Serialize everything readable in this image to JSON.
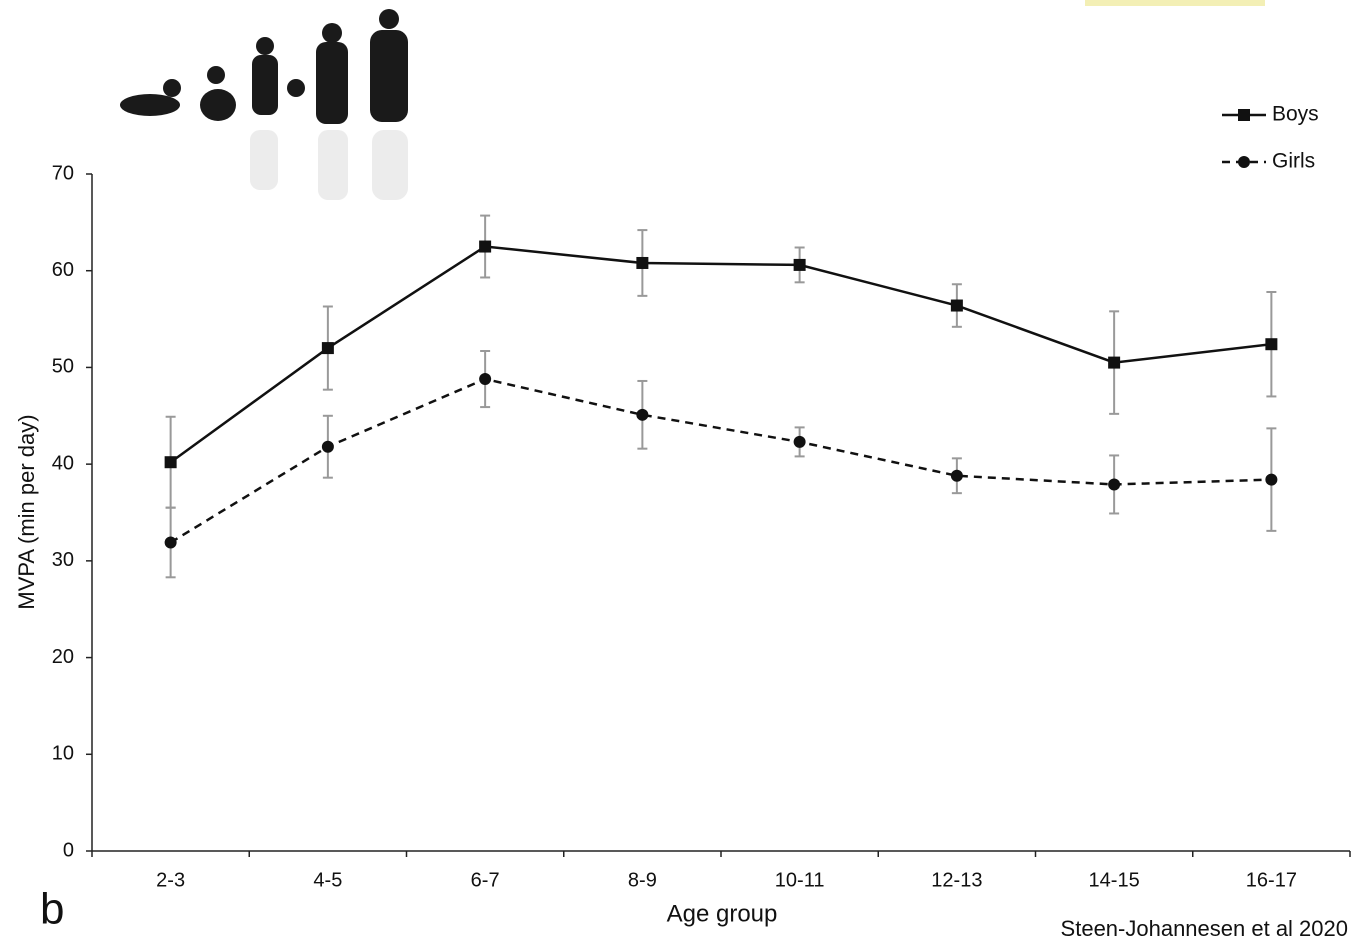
{
  "chart_data": {
    "type": "line",
    "x_label": "Age group",
    "y_label": "MVPA (min per day)",
    "source": "Steen-Johannesen et al 2020",
    "panel_label": "b",
    "categories": [
      "2-3",
      "4-5",
      "6-7",
      "8-9",
      "10-11",
      "12-13",
      "14-15",
      "16-17"
    ],
    "series": [
      {
        "name": "Boys",
        "color": "#111111",
        "linestyle": "solid",
        "marker": "square",
        "values": [
          40.2,
          52.0,
          62.5,
          60.8,
          60.6,
          56.4,
          50.5,
          52.4
        ],
        "errors": [
          4.7,
          4.3,
          3.2,
          3.4,
          1.8,
          2.2,
          5.3,
          5.4
        ]
      },
      {
        "name": "Girls",
        "color": "#111111",
        "linestyle": "dashed",
        "marker": "circle",
        "values": [
          31.9,
          41.8,
          48.8,
          45.1,
          42.3,
          38.8,
          37.9,
          38.4
        ],
        "errors": [
          3.6,
          3.2,
          2.9,
          3.5,
          1.5,
          1.8,
          3.0,
          5.3
        ]
      }
    ],
    "error_color": "#999999",
    "ylim": [
      0,
      70
    ],
    "yticks": [
      0,
      10,
      20,
      30,
      40,
      50,
      60,
      70
    ]
  }
}
